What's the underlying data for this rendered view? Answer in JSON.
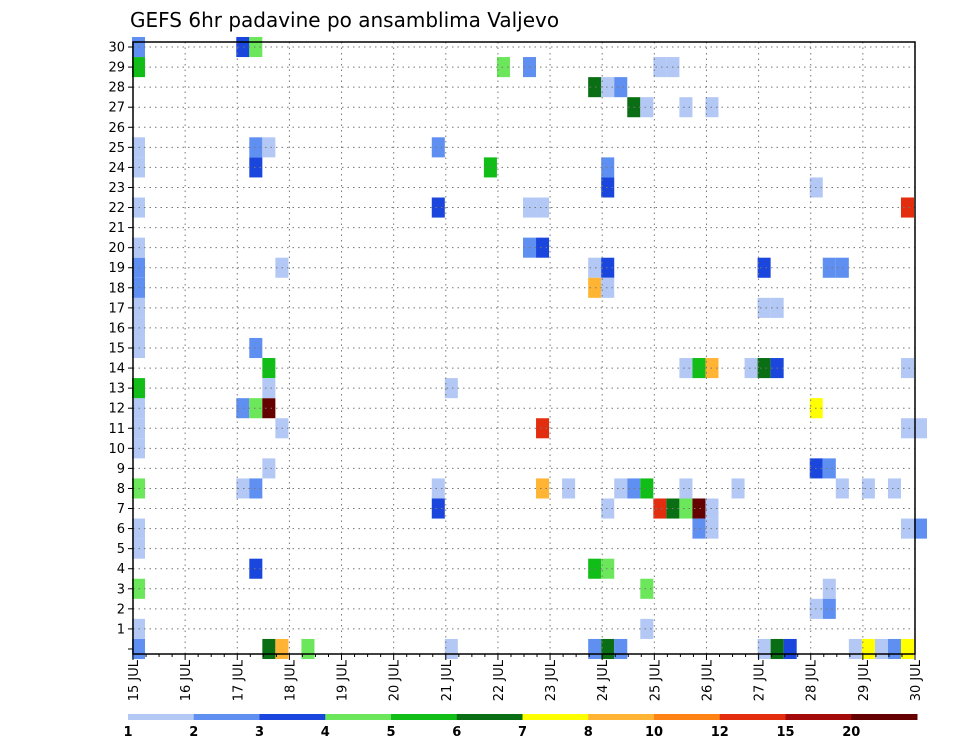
{
  "chart_data": {
    "type": "heatmap",
    "title": "GEFS 6hr padavine po ansamblima Valjevo",
    "y_tick_labels": [
      "1",
      "2",
      "3",
      "4",
      "5",
      "6",
      "7",
      "8",
      "9",
      "10",
      "11",
      "12",
      "13",
      "14",
      "15",
      "16",
      "17",
      "18",
      "19",
      "20",
      "21",
      "22",
      "23",
      "24",
      "25",
      "26",
      "27",
      "28",
      "29",
      "30"
    ],
    "x_tick_labels": [
      "15 JUL",
      "16 JUL",
      "17 JUL",
      "18 JUL",
      "19 JUL",
      "20 JUL",
      "21 JUL",
      "22 JUL",
      "23 JUL",
      "24 JUL",
      "25 JUL",
      "26 JUL",
      "27 JUL",
      "28 JUL",
      "29 JUL",
      "30 JUL"
    ],
    "x_range_days": [
      15,
      30
    ],
    "y_range_members": [
      0,
      30
    ],
    "grid": true,
    "colorbar": {
      "labels": [
        "1",
        "2",
        "3",
        "4",
        "5",
        "6",
        "7",
        "8",
        "10",
        "12",
        "15",
        "20"
      ],
      "colors": [
        "#b4c8f5",
        "#5f8ff0",
        "#1a46dd",
        "#6ce65a",
        "#11be18",
        "#0a6e14",
        "#ffff00",
        "#ffb433",
        "#ff8214",
        "#e32d0f",
        "#a50a0a",
        "#640000"
      ]
    },
    "cells": [
      {
        "day": 15.0,
        "member": 0,
        "cls": 2
      },
      {
        "day": 15.0,
        "member": 1,
        "cls": 1
      },
      {
        "day": 15.0,
        "member": 3,
        "cls": 4
      },
      {
        "day": 15.0,
        "member": 5,
        "cls": 1
      },
      {
        "day": 15.0,
        "member": 6,
        "cls": 1
      },
      {
        "day": 15.0,
        "member": 8,
        "cls": 4
      },
      {
        "day": 15.0,
        "member": 10,
        "cls": 1
      },
      {
        "day": 15.0,
        "member": 11,
        "cls": 1
      },
      {
        "day": 15.0,
        "member": 12,
        "cls": 1
      },
      {
        "day": 15.0,
        "member": 13,
        "cls": 5
      },
      {
        "day": 15.0,
        "member": 15,
        "cls": 1
      },
      {
        "day": 15.0,
        "member": 16,
        "cls": 1
      },
      {
        "day": 15.0,
        "member": 17,
        "cls": 1
      },
      {
        "day": 15.0,
        "member": 18,
        "cls": 2
      },
      {
        "day": 15.0,
        "member": 19,
        "cls": 2
      },
      {
        "day": 15.0,
        "member": 20,
        "cls": 1
      },
      {
        "day": 15.0,
        "member": 22,
        "cls": 1
      },
      {
        "day": 15.0,
        "member": 24,
        "cls": 1
      },
      {
        "day": 15.0,
        "member": 25,
        "cls": 1
      },
      {
        "day": 15.0,
        "member": 29,
        "cls": 5
      },
      {
        "day": 15.0,
        "member": 30,
        "cls": 2
      },
      {
        "day": 17.0,
        "member": 12,
        "cls": 2
      },
      {
        "day": 17.0,
        "member": 30,
        "cls": 3
      },
      {
        "day": 17.0,
        "member": 8,
        "cls": 1
      },
      {
        "day": 17.25,
        "member": 8,
        "cls": 2
      },
      {
        "day": 17.25,
        "member": 12,
        "cls": 4
      },
      {
        "day": 17.25,
        "member": 4,
        "cls": 3
      },
      {
        "day": 17.25,
        "member": 15,
        "cls": 2
      },
      {
        "day": 17.25,
        "member": 24,
        "cls": 3
      },
      {
        "day": 17.25,
        "member": 25,
        "cls": 2
      },
      {
        "day": 17.25,
        "member": 30,
        "cls": 4
      },
      {
        "day": 17.5,
        "member": 12,
        "cls": 12
      },
      {
        "day": 17.5,
        "member": 14,
        "cls": 5
      },
      {
        "day": 17.5,
        "member": 13,
        "cls": 1
      },
      {
        "day": 17.5,
        "member": 9,
        "cls": 1
      },
      {
        "day": 17.5,
        "member": 25,
        "cls": 1
      },
      {
        "day": 17.5,
        "member": 0,
        "cls": 6
      },
      {
        "day": 17.75,
        "member": 0,
        "cls": 8
      },
      {
        "day": 17.75,
        "member": 11,
        "cls": 1
      },
      {
        "day": 17.75,
        "member": 19,
        "cls": 1
      },
      {
        "day": 18.25,
        "member": 0,
        "cls": 4
      },
      {
        "day": 20.75,
        "member": 7,
        "cls": 3
      },
      {
        "day": 20.75,
        "member": 8,
        "cls": 1
      },
      {
        "day": 20.75,
        "member": 22,
        "cls": 3
      },
      {
        "day": 20.75,
        "member": 25,
        "cls": 2
      },
      {
        "day": 21.0,
        "member": 0,
        "cls": 1
      },
      {
        "day": 21.0,
        "member": 13,
        "cls": 1
      },
      {
        "day": 21.75,
        "member": 24,
        "cls": 5
      },
      {
        "day": 22.0,
        "member": 29,
        "cls": 4
      },
      {
        "day": 22.5,
        "member": 22,
        "cls": 1
      },
      {
        "day": 22.5,
        "member": 20,
        "cls": 2
      },
      {
        "day": 22.5,
        "member": 29,
        "cls": 2
      },
      {
        "day": 22.75,
        "member": 22,
        "cls": 1
      },
      {
        "day": 22.75,
        "member": 20,
        "cls": 3
      },
      {
        "day": 22.75,
        "member": 11,
        "cls": 10
      },
      {
        "day": 22.75,
        "member": 8,
        "cls": 8
      },
      {
        "day": 23.25,
        "member": 8,
        "cls": 1
      },
      {
        "day": 23.75,
        "member": 28,
        "cls": 6
      },
      {
        "day": 23.75,
        "member": 19,
        "cls": 1
      },
      {
        "day": 23.75,
        "member": 18,
        "cls": 8
      },
      {
        "day": 23.75,
        "member": 4,
        "cls": 5
      },
      {
        "day": 23.75,
        "member": 0,
        "cls": 2
      },
      {
        "day": 24.0,
        "member": 28,
        "cls": 1
      },
      {
        "day": 24.0,
        "member": 24,
        "cls": 2
      },
      {
        "day": 24.0,
        "member": 23,
        "cls": 3
      },
      {
        "day": 24.0,
        "member": 19,
        "cls": 3
      },
      {
        "day": 24.0,
        "member": 18,
        "cls": 1
      },
      {
        "day": 24.0,
        "member": 7,
        "cls": 1
      },
      {
        "day": 24.0,
        "member": 4,
        "cls": 4
      },
      {
        "day": 24.0,
        "member": 0,
        "cls": 6
      },
      {
        "day": 24.25,
        "member": 28,
        "cls": 2
      },
      {
        "day": 24.25,
        "member": 8,
        "cls": 1
      },
      {
        "day": 24.25,
        "member": 0,
        "cls": 2
      },
      {
        "day": 24.5,
        "member": 27,
        "cls": 6
      },
      {
        "day": 24.5,
        "member": 8,
        "cls": 2
      },
      {
        "day": 24.75,
        "member": 27,
        "cls": 1
      },
      {
        "day": 24.75,
        "member": 8,
        "cls": 5
      },
      {
        "day": 24.75,
        "member": 3,
        "cls": 4
      },
      {
        "day": 24.75,
        "member": 1,
        "cls": 1
      },
      {
        "day": 25.0,
        "member": 29,
        "cls": 1
      },
      {
        "day": 25.0,
        "member": 7,
        "cls": 10
      },
      {
        "day": 25.25,
        "member": 29,
        "cls": 1
      },
      {
        "day": 25.25,
        "member": 7,
        "cls": 6
      },
      {
        "day": 25.5,
        "member": 27,
        "cls": 1
      },
      {
        "day": 25.5,
        "member": 14,
        "cls": 1
      },
      {
        "day": 25.5,
        "member": 8,
        "cls": 1
      },
      {
        "day": 25.5,
        "member": 7,
        "cls": 4
      },
      {
        "day": 25.75,
        "member": 14,
        "cls": 5
      },
      {
        "day": 25.75,
        "member": 7,
        "cls": 12
      },
      {
        "day": 25.75,
        "member": 6,
        "cls": 2
      },
      {
        "day": 26.0,
        "member": 27,
        "cls": 1
      },
      {
        "day": 26.0,
        "member": 14,
        "cls": 8
      },
      {
        "day": 26.0,
        "member": 7,
        "cls": 1
      },
      {
        "day": 26.0,
        "member": 6,
        "cls": 1
      },
      {
        "day": 26.5,
        "member": 8,
        "cls": 1
      },
      {
        "day": 26.75,
        "member": 14,
        "cls": 1
      },
      {
        "day": 27.0,
        "member": 0,
        "cls": 1
      },
      {
        "day": 27.0,
        "member": 19,
        "cls": 3
      },
      {
        "day": 27.0,
        "member": 17,
        "cls": 1
      },
      {
        "day": 27.0,
        "member": 14,
        "cls": 6
      },
      {
        "day": 27.25,
        "member": 17,
        "cls": 1
      },
      {
        "day": 27.25,
        "member": 14,
        "cls": 3
      },
      {
        "day": 27.25,
        "member": 0,
        "cls": 6
      },
      {
        "day": 27.5,
        "member": 0,
        "cls": 3
      },
      {
        "day": 28.0,
        "member": 23,
        "cls": 1
      },
      {
        "day": 28.0,
        "member": 12,
        "cls": 7
      },
      {
        "day": 28.0,
        "member": 9,
        "cls": 3
      },
      {
        "day": 28.0,
        "member": 2,
        "cls": 1
      },
      {
        "day": 28.25,
        "member": 19,
        "cls": 2
      },
      {
        "day": 28.25,
        "member": 9,
        "cls": 2
      },
      {
        "day": 28.25,
        "member": 3,
        "cls": 1
      },
      {
        "day": 28.25,
        "member": 2,
        "cls": 2
      },
      {
        "day": 28.5,
        "member": 19,
        "cls": 2
      },
      {
        "day": 28.5,
        "member": 8,
        "cls": 1
      },
      {
        "day": 28.75,
        "member": 0,
        "cls": 1
      },
      {
        "day": 29.0,
        "member": 8,
        "cls": 1
      },
      {
        "day": 29.0,
        "member": 0,
        "cls": 7
      },
      {
        "day": 29.25,
        "member": 0,
        "cls": 1
      },
      {
        "day": 29.5,
        "member": 8,
        "cls": 1
      },
      {
        "day": 29.5,
        "member": 0,
        "cls": 2
      },
      {
        "day": 29.75,
        "member": 22,
        "cls": 10
      },
      {
        "day": 29.75,
        "member": 14,
        "cls": 1
      },
      {
        "day": 29.75,
        "member": 11,
        "cls": 1
      },
      {
        "day": 29.75,
        "member": 6,
        "cls": 1
      },
      {
        "day": 29.75,
        "member": 0,
        "cls": 7
      },
      {
        "day": 30.0,
        "member": 11,
        "cls": 1
      },
      {
        "day": 30.0,
        "member": 6,
        "cls": 2
      }
    ]
  }
}
